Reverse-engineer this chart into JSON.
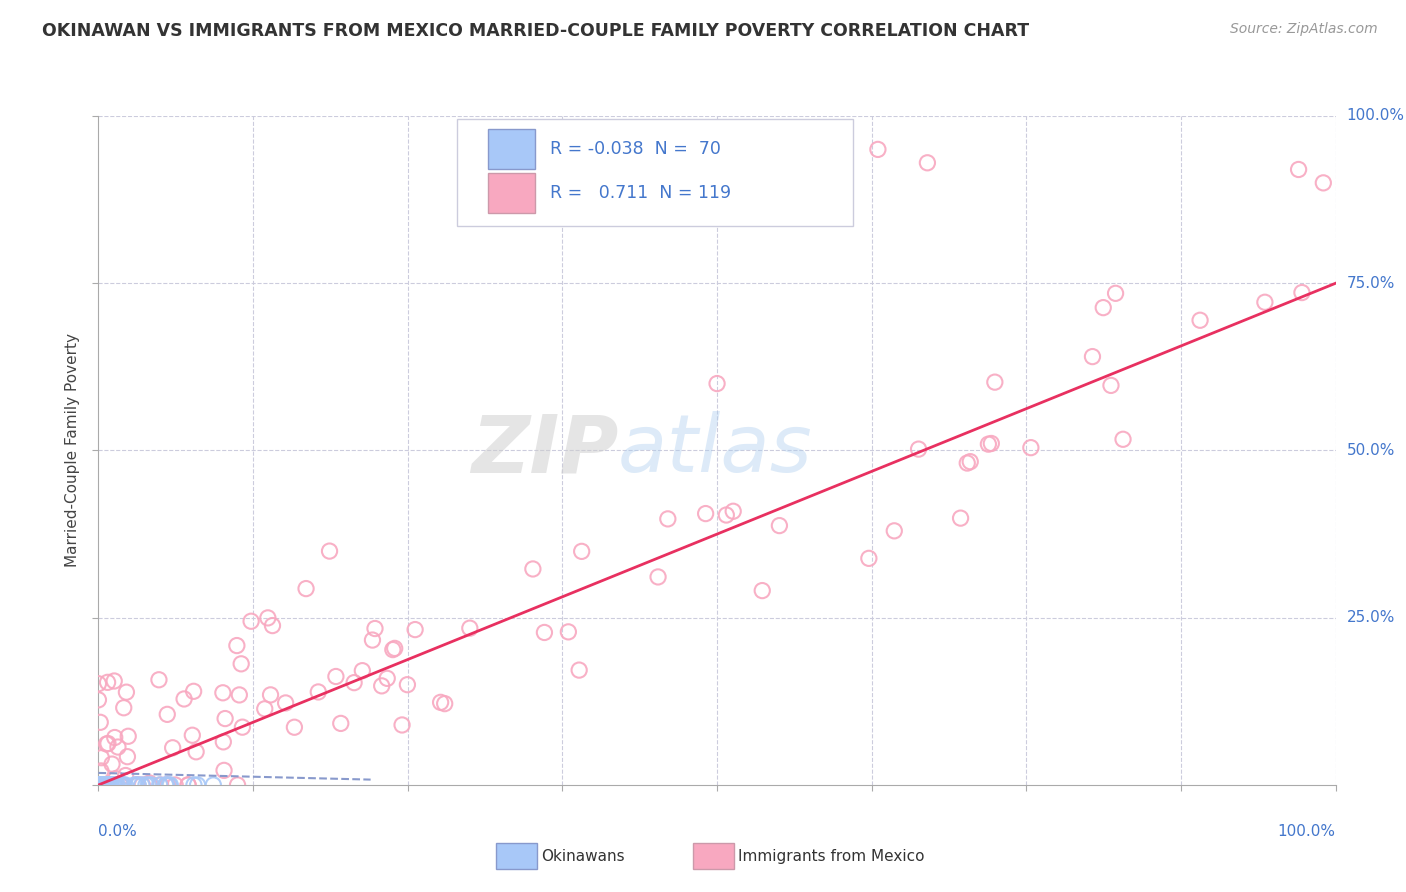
{
  "title": "OKINAWAN VS IMMIGRANTS FROM MEXICO MARRIED-COUPLE FAMILY POVERTY CORRELATION CHART",
  "source": "Source: ZipAtlas.com",
  "ylabel": "Married-Couple Family Poverty",
  "watermark_zip": "ZIP",
  "watermark_atlas": "atlas",
  "okinawan_color": "#a8c8f8",
  "mexico_color": "#f8a8c0",
  "trendline_okinawan_color": "#8899cc",
  "trendline_mexico_color": "#e83060",
  "axis_color": "#4477cc",
  "grid_color": "#ddddee",
  "background_color": "#ffffff",
  "R_okinawan": -0.038,
  "N_okinawan": 70,
  "R_mexico": 0.711,
  "N_mexico": 119,
  "legend_R1": "-0.038",
  "legend_N1": "70",
  "legend_R2": "0.711",
  "legend_N2": "119"
}
